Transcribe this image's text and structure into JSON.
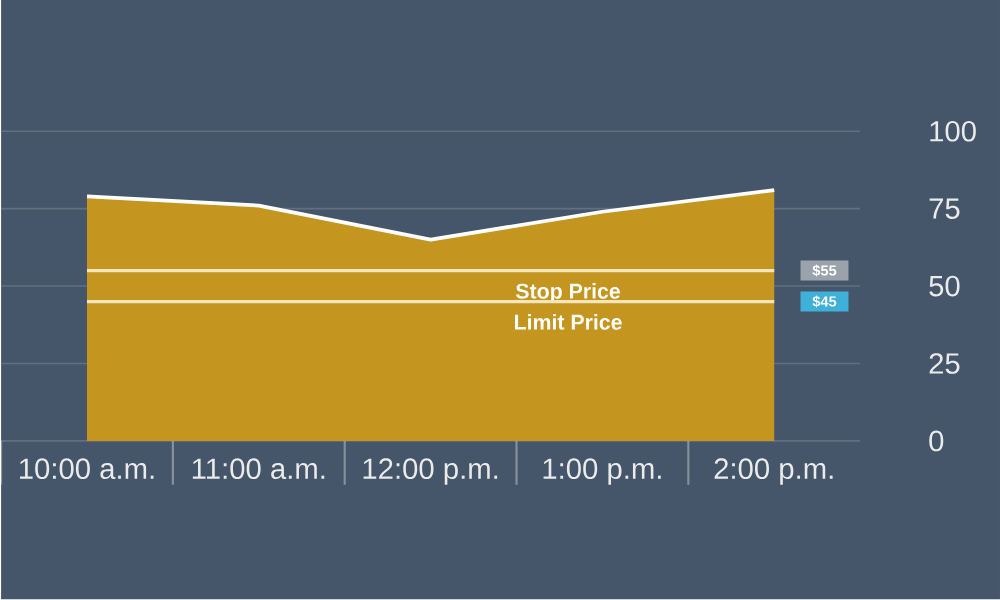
{
  "chart_data": {
    "type": "area",
    "categories": [
      "10:00 a.m.",
      "11:00 a.m.",
      "12:00 p.m.",
      "1:00 p.m.",
      "2:00 p.m."
    ],
    "values": [
      79,
      76,
      65,
      74,
      81
    ],
    "color": "#c4951f",
    "ylim": [
      0,
      100
    ],
    "yticks": [
      0,
      25,
      50,
      75,
      100
    ],
    "grid": "y",
    "ref_lines": [
      {
        "axis": "y",
        "value": 55,
        "label": "Stop Price",
        "color": "#f3e6bd"
      },
      {
        "axis": "y",
        "value": 45,
        "label": "Limit Price",
        "color": "#f3e6bd"
      }
    ],
    "annotations": [
      {
        "text": "$55",
        "y": 55
      },
      {
        "text": "$45",
        "y": 45
      }
    ]
  }
}
